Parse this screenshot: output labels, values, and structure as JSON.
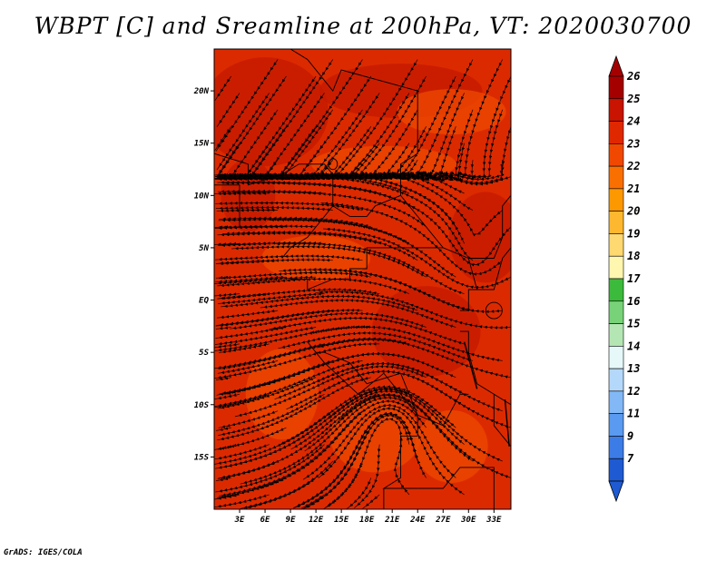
{
  "title": "WBPT [C] and Sreamline at 200hPa, VT: 2020030700",
  "credit": "GrADS: IGES/COLA",
  "map": {
    "lon_labels": [
      "3E",
      "6E",
      "9E",
      "12E",
      "15E",
      "18E",
      "21E",
      "24E",
      "27E",
      "30E",
      "33E"
    ],
    "lat_labels": [
      "20N",
      "15N",
      "10N",
      "5N",
      "EQ",
      "5S",
      "10S",
      "15S"
    ],
    "lon_range": [
      0,
      35
    ],
    "lat_range": [
      -20,
      24
    ],
    "field_colors": {
      "dark": "#c41a00",
      "mid": "#dc2a00",
      "light": "#ee4a00"
    }
  },
  "colorbar": {
    "labels": [
      "26",
      "25",
      "24",
      "23",
      "22",
      "21",
      "20",
      "19",
      "18",
      "17",
      "16",
      "15",
      "14",
      "13",
      "12",
      "11",
      "9",
      "7"
    ],
    "colors": [
      "#a50000",
      "#c81400",
      "#e02800",
      "#f04800",
      "#fa7000",
      "#fc9800",
      "#fdb830",
      "#fed870",
      "#fff6b0",
      "#3cba3c",
      "#78d278",
      "#b4e6b4",
      "#e6f8f8",
      "#b4d8fa",
      "#82b8f6",
      "#5a9af0",
      "#3c7ce6",
      "#1e5ad2"
    ],
    "top_arrow_color": "#a50000",
    "bottom_arrow_color": "#1e5ad2"
  }
}
